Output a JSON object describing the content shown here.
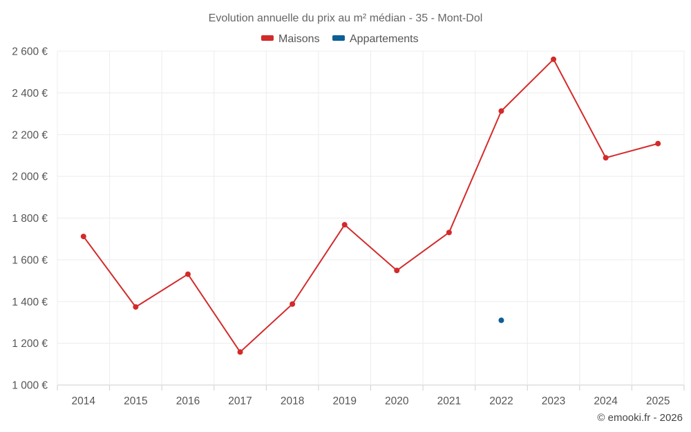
{
  "chart_data": {
    "type": "line",
    "title": "Evolution annuelle du prix au m² médian - 35 - Mont-Dol",
    "categories": [
      "2014",
      "2015",
      "2016",
      "2017",
      "2018",
      "2019",
      "2020",
      "2021",
      "2022",
      "2023",
      "2024",
      "2025"
    ],
    "series": [
      {
        "name": "Maisons",
        "color": "#d32a2a",
        "values": [
          1712,
          1374,
          1531,
          1158,
          1388,
          1768,
          1549,
          1731,
          2313,
          2561,
          2089,
          2157
        ]
      },
      {
        "name": "Appartements",
        "color": "#0d5f96",
        "values": [
          null,
          null,
          null,
          null,
          null,
          null,
          null,
          null,
          1310,
          null,
          null,
          null
        ]
      }
    ],
    "ylim": [
      1000,
      2600
    ],
    "yticks": [
      1000,
      1200,
      1400,
      1600,
      1800,
      2000,
      2200,
      2400,
      2600
    ],
    "ytick_labels": [
      "1 000 €",
      "1 200 €",
      "1 400 €",
      "1 600 €",
      "1 800 €",
      "2 000 €",
      "2 200 €",
      "2 400 €",
      "2 600 €"
    ],
    "xlabel": "",
    "ylabel": "",
    "grid": true,
    "legend_position": "top-center"
  },
  "credit": "© emooki.fr - 2026"
}
